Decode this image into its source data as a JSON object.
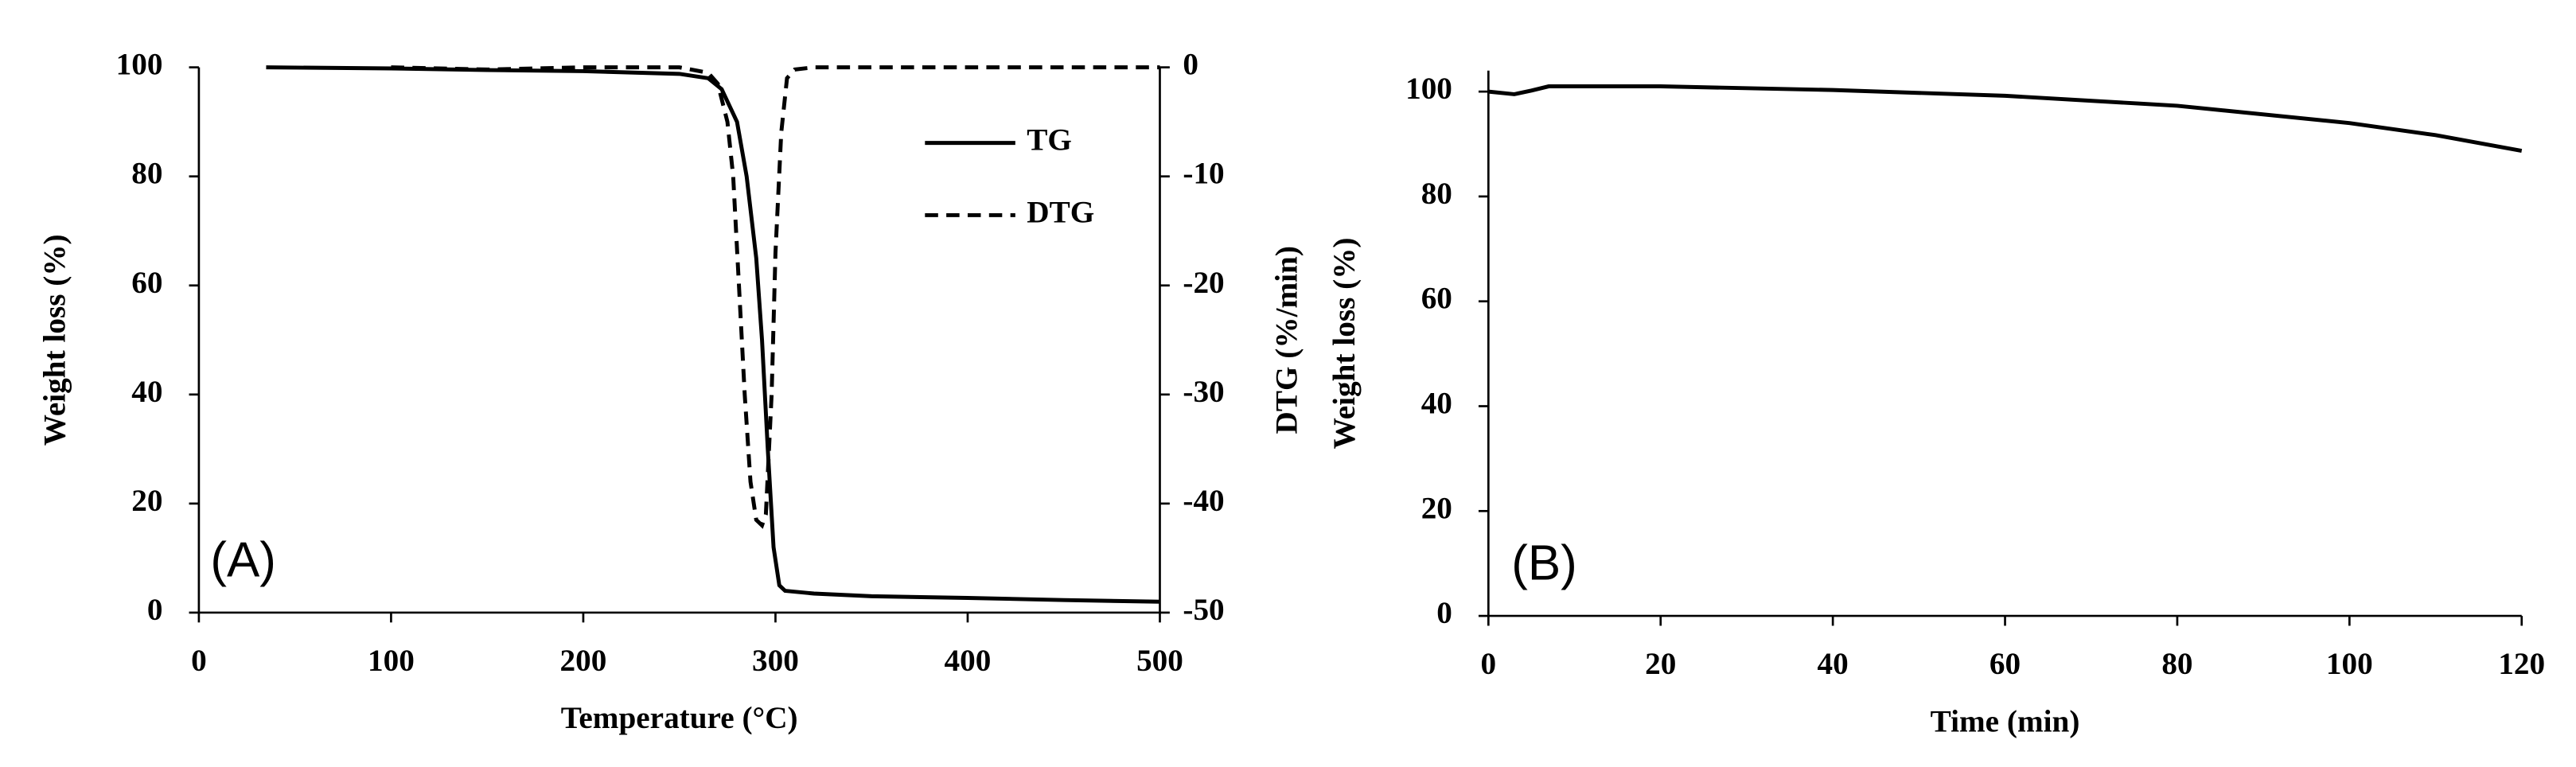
{
  "chart_data": [
    {
      "type": "line",
      "annotation": "(A)",
      "x_label": "Temperature (°C)",
      "y_label": "Weight loss (%)",
      "y2_label": "DTG (%/min)",
      "xlim": [
        0,
        500
      ],
      "xticks": [
        0,
        100,
        200,
        300,
        400,
        500
      ],
      "ylim": [
        0,
        100
      ],
      "yticks": [
        0,
        20,
        40,
        60,
        80,
        100
      ],
      "y2lim": [
        -50,
        0
      ],
      "y2ticks": [
        -50,
        -40,
        -30,
        -20,
        -10,
        0
      ],
      "grid": false,
      "legend": "upper right",
      "series": [
        {
          "name": "TG",
          "color": "#000000",
          "line_style": "solid",
          "x": [
            35,
            100,
            150,
            200,
            250,
            265,
            272,
            280,
            285,
            290,
            293,
            296,
            299,
            302,
            305,
            320,
            350,
            400,
            450,
            500
          ],
          "values": [
            100,
            99.8,
            99.5,
            99.3,
            98.8,
            98,
            96,
            90,
            80,
            65,
            50,
            30,
            12,
            5,
            4,
            3.5,
            3,
            2.7,
            2.3,
            2
          ]
        },
        {
          "name": "DTG",
          "color": "#000000",
          "line_style": "dashed",
          "axis": "y2",
          "x": [
            100,
            150,
            200,
            250,
            265,
            270,
            275,
            278,
            281,
            284,
            287,
            290,
            293,
            295,
            298,
            300,
            303,
            306,
            310,
            320,
            400,
            500
          ],
          "values": [
            0,
            -0.2,
            0,
            0,
            -0.5,
            -1.5,
            -5,
            -10,
            -20,
            -30,
            -38,
            -41.5,
            -42,
            -41,
            -30,
            -17,
            -6,
            -1,
            -0.2,
            0,
            0,
            0
          ]
        }
      ]
    },
    {
      "type": "line",
      "annotation": "(B)",
      "x_label": "Time (min)",
      "y_label": "Weight loss (%)",
      "xlim": [
        0,
        120
      ],
      "xticks": [
        0,
        20,
        40,
        60,
        80,
        100,
        120
      ],
      "ylim": [
        0,
        104
      ],
      "yticks": [
        0,
        20,
        40,
        60,
        80,
        100
      ],
      "grid": false,
      "series": [
        {
          "color": "#000000",
          "line_style": "solid",
          "x": [
            0,
            3,
            5,
            7,
            20,
            40,
            60,
            80,
            100,
            110,
            120
          ],
          "values": [
            100,
            99.5,
            100.2,
            101,
            101,
            100.3,
            99.2,
            97.3,
            94,
            91.7,
            88.7
          ]
        }
      ]
    }
  ]
}
